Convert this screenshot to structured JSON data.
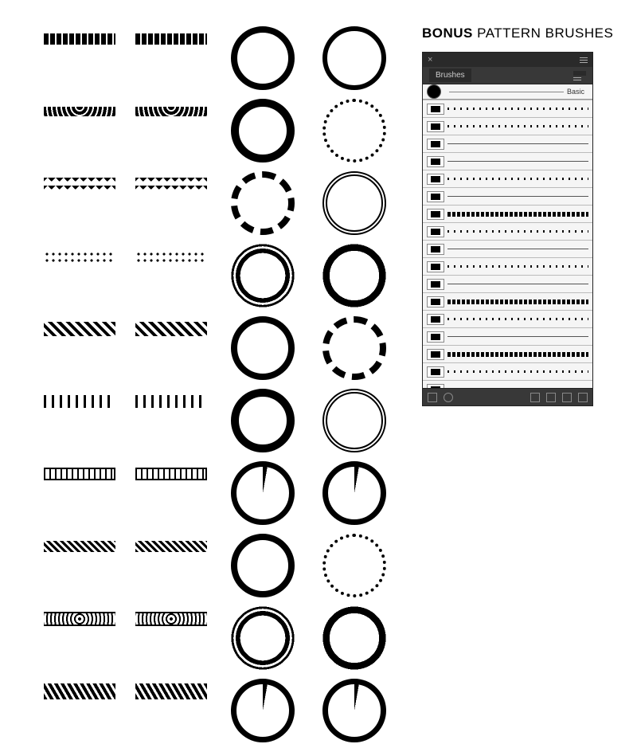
{
  "title": {
    "bold": "BONUS",
    "light": " PATTERN BRUSHES"
  },
  "panel": {
    "tab_label": "Brushes",
    "basic_label": "Basic",
    "close_glyph": "×",
    "background_color": "#383838",
    "body_color": "#f5f5f5",
    "header_color": "#2a2a2a",
    "text_color": "#cccccc",
    "rows": [
      {
        "type": "dot"
      },
      {
        "type": "dot"
      },
      {
        "type": "thin"
      },
      {
        "type": "thin"
      },
      {
        "type": "dot"
      },
      {
        "type": "thin"
      },
      {
        "type": "thick"
      },
      {
        "type": "dot"
      },
      {
        "type": "thin"
      },
      {
        "type": "dot"
      },
      {
        "type": "thin"
      },
      {
        "type": "thick"
      },
      {
        "type": "dot"
      },
      {
        "type": "thin"
      },
      {
        "type": "thick"
      },
      {
        "type": "dot"
      },
      {
        "type": "thin"
      }
    ]
  },
  "brushes": {
    "linear": [
      [
        "wave1",
        "wave1"
      ],
      [
        "wave2",
        "wave2"
      ],
      [
        "zigzag",
        "zigzag"
      ],
      [
        "dots",
        "dots"
      ],
      [
        "diamond",
        "diamond"
      ],
      [
        "cross",
        "cross"
      ],
      [
        "border1",
        "border1"
      ],
      [
        "chev",
        "chev"
      ],
      [
        "ornate",
        "ornate"
      ],
      [
        "leaf",
        "leaf"
      ]
    ],
    "circles": [
      [
        "c1",
        "c2"
      ],
      [
        "c3",
        "c4"
      ],
      [
        "c5",
        "c6"
      ],
      [
        "c7",
        "c8"
      ],
      [
        "c1",
        "c5"
      ],
      [
        "c3",
        "c6"
      ],
      [
        "c9",
        "c9"
      ],
      [
        "c1",
        "c4"
      ],
      [
        "c7",
        "c8"
      ],
      [
        "c9",
        "c9"
      ]
    ]
  },
  "colors": {
    "black": "#000000",
    "white": "#ffffff"
  }
}
